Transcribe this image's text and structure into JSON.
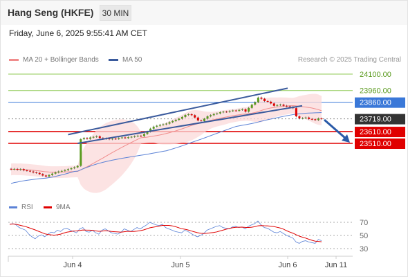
{
  "header": {
    "title": "Hang Seng (HKFE)",
    "timeframe": "30 MIN"
  },
  "datetime": "Friday, June 6, 2025 9:55:41 AM CET",
  "legend": {
    "ma20": {
      "label": "MA 20 + Bollinger Bands",
      "color": "#f08c8c"
    },
    "ma50": {
      "label": "MA 50",
      "color": "#3a5a9c"
    }
  },
  "copyright": "Research © 2025 Trading Central",
  "rsi_legend": {
    "rsi": {
      "label": "RSI",
      "color": "#5b82d6"
    },
    "ma9": {
      "label": "9MA",
      "color": "#e00000"
    }
  },
  "chart_data": {
    "type": "candlestick",
    "instrument": "Hang Seng (HKFE)",
    "interval": "30 MIN",
    "xlabels": [
      "Jun 4",
      "Jun 5",
      "Jun 6",
      "Jun 11"
    ],
    "price_levels": [
      {
        "value": "24100.00",
        "type": "resistance",
        "color": "#8cc850"
      },
      {
        "value": "23960.00",
        "type": "resistance",
        "color": "#8cc850"
      },
      {
        "value": "23860.00",
        "type": "pivot",
        "color": "#3a78d8"
      },
      {
        "value": "23719.00",
        "type": "last",
        "color": "#333333"
      },
      {
        "value": "23610.00",
        "type": "support",
        "color": "#e00000"
      },
      {
        "value": "23510.00",
        "type": "support",
        "color": "#e00000"
      }
    ],
    "rsi_levels": [
      "70",
      "50",
      "30"
    ],
    "candles_close": [
      23288,
      23292,
      23285,
      23290,
      23280,
      23276,
      23270,
      23262,
      23258,
      23248,
      23236,
      23228,
      23240,
      23252,
      23262,
      23270,
      23275,
      23282,
      23290,
      23298,
      23306,
      23318,
      23545,
      23555,
      23548,
      23560,
      23565,
      23570,
      23555,
      23548,
      23552,
      23545,
      23550,
      23548,
      23556,
      23560,
      23555,
      23562,
      23566,
      23570,
      23575,
      23572,
      23590,
      23610,
      23635,
      23652,
      23660,
      23668,
      23672,
      23678,
      23690,
      23700,
      23710,
      23720,
      23735,
      23752,
      23758,
      23750,
      23730,
      23705,
      23700,
      23720,
      23740,
      23750,
      23760,
      23765,
      23775,
      23780,
      23778,
      23785,
      23790,
      23787,
      23795,
      23800,
      23780,
      23812,
      23840,
      23860,
      23900,
      23890,
      23870,
      23865,
      23850,
      23830,
      23836,
      23840,
      23830,
      23825,
      23820,
      23810,
      23740,
      23722,
      23725,
      23730,
      23718,
      23715,
      23708,
      23722,
      23719
    ],
    "rsi": [
      67,
      68,
      66,
      62,
      60,
      58,
      52,
      48,
      45,
      49,
      51,
      48,
      52,
      55,
      54,
      58,
      56,
      60,
      61,
      58,
      56,
      54,
      60,
      62,
      56,
      55,
      58,
      54,
      52,
      58,
      60,
      57,
      54,
      53,
      52,
      55,
      60,
      58,
      56,
      59,
      62,
      60,
      63,
      66,
      70,
      68,
      66,
      65,
      67,
      62,
      60,
      58,
      56,
      55,
      54,
      58,
      56,
      53,
      50,
      48,
      50,
      53,
      58,
      60,
      62,
      64,
      65,
      62,
      61,
      60,
      63,
      64,
      62,
      63,
      60,
      64,
      66,
      68,
      72,
      66,
      62,
      61,
      58,
      55,
      54,
      56,
      53,
      50,
      48,
      46,
      40,
      38,
      41,
      42,
      40,
      39,
      38,
      44,
      42
    ]
  }
}
